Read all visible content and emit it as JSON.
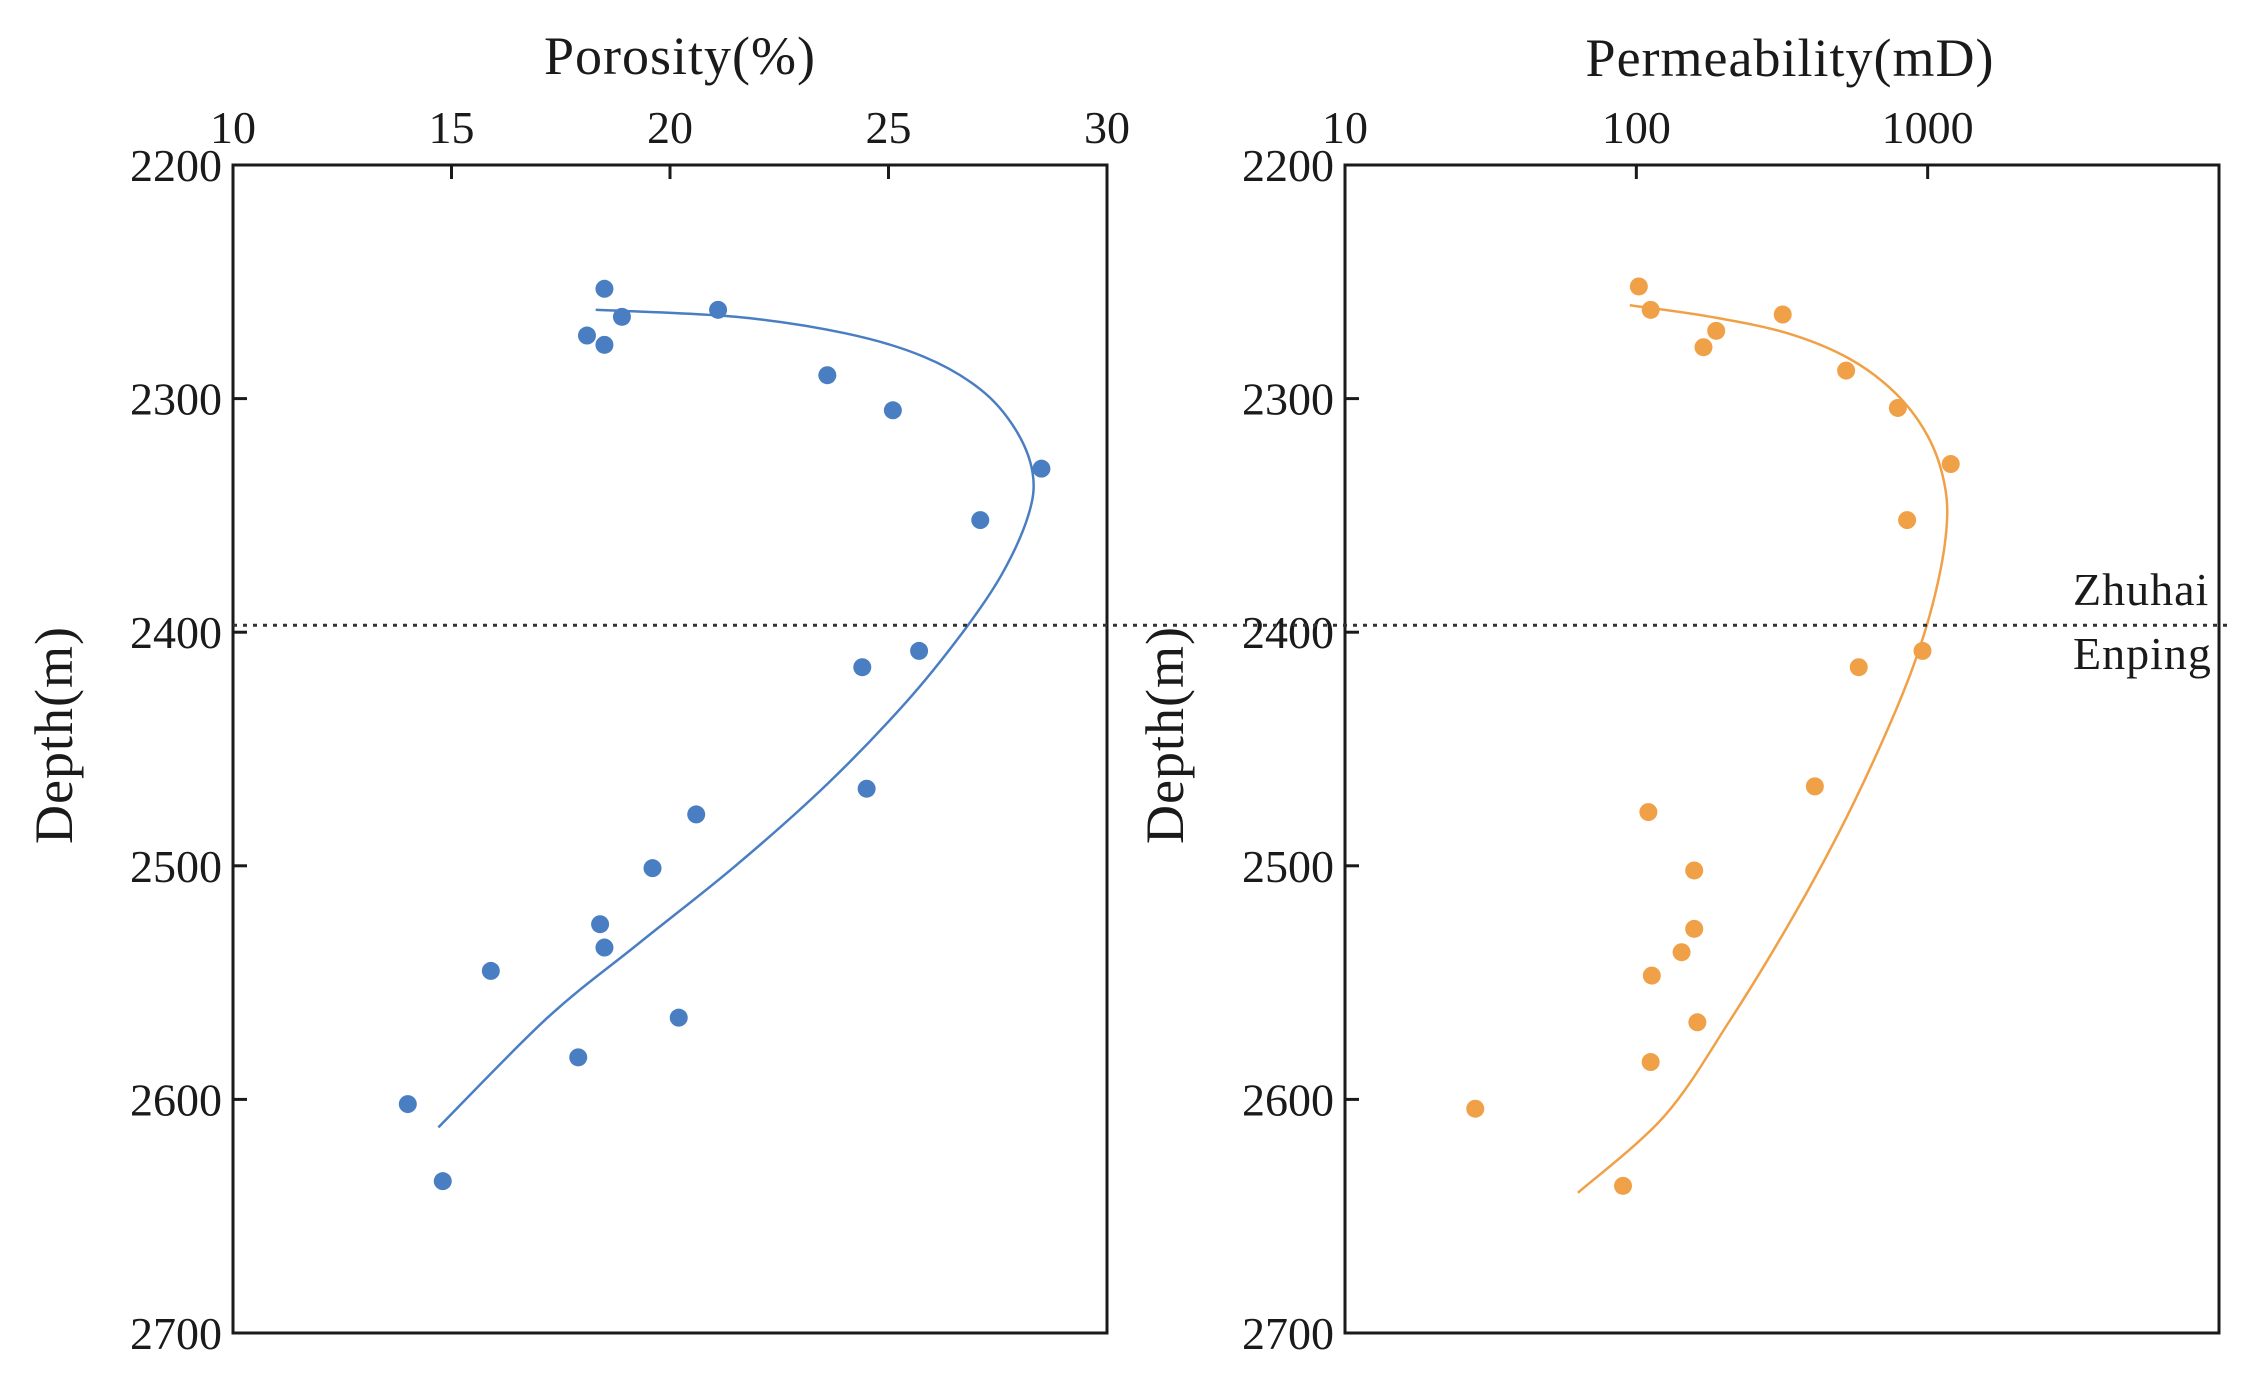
{
  "chart_data": [
    {
      "type": "scatter",
      "id": "porosity",
      "title": "",
      "xlabel": "Porosity(%)",
      "ylabel": "Depth(m)",
      "x_axis_position": "top",
      "xscale": "linear",
      "xlim": [
        10,
        30
      ],
      "ylim": [
        2200,
        2700
      ],
      "y_inverted": true,
      "xticks": [
        10,
        15,
        20,
        25,
        30
      ],
      "xtick_labels": [
        "10",
        "15",
        "20",
        "25",
        "30"
      ],
      "yticks": [
        2200,
        2300,
        2400,
        2500,
        2600,
        2700
      ],
      "ytick_labels": [
        "2200",
        "2300",
        "2400",
        "2500",
        "2600",
        "2700"
      ],
      "color": "#4a7ec2",
      "points": [
        {
          "x": 18.5,
          "y": 2253
        },
        {
          "x": 21.1,
          "y": 2262
        },
        {
          "x": 18.9,
          "y": 2265
        },
        {
          "x": 18.1,
          "y": 2273
        },
        {
          "x": 18.5,
          "y": 2277
        },
        {
          "x": 23.6,
          "y": 2290
        },
        {
          "x": 25.1,
          "y": 2305
        },
        {
          "x": 28.5,
          "y": 2330
        },
        {
          "x": 27.1,
          "y": 2352
        },
        {
          "x": 25.7,
          "y": 2408
        },
        {
          "x": 24.4,
          "y": 2415
        },
        {
          "x": 24.5,
          "y": 2467
        },
        {
          "x": 20.6,
          "y": 2478
        },
        {
          "x": 19.6,
          "y": 2501
        },
        {
          "x": 18.4,
          "y": 2525
        },
        {
          "x": 18.5,
          "y": 2535
        },
        {
          "x": 15.9,
          "y": 2545
        },
        {
          "x": 20.2,
          "y": 2565
        },
        {
          "x": 17.9,
          "y": 2582
        },
        {
          "x": 14.0,
          "y": 2602
        },
        {
          "x": 14.8,
          "y": 2635
        }
      ],
      "fit_curve": [
        {
          "x": 18.3,
          "y": 2262
        },
        {
          "x": 21.5,
          "y": 2265
        },
        {
          "x": 24.0,
          "y": 2272
        },
        {
          "x": 25.8,
          "y": 2282
        },
        {
          "x": 27.1,
          "y": 2296
        },
        {
          "x": 27.9,
          "y": 2313
        },
        {
          "x": 28.3,
          "y": 2332
        },
        {
          "x": 28.2,
          "y": 2350
        },
        {
          "x": 27.6,
          "y": 2375
        },
        {
          "x": 26.7,
          "y": 2400
        },
        {
          "x": 25.4,
          "y": 2430
        },
        {
          "x": 23.6,
          "y": 2465
        },
        {
          "x": 21.5,
          "y": 2500
        },
        {
          "x": 19.3,
          "y": 2533
        },
        {
          "x": 17.2,
          "y": 2565
        },
        {
          "x": 14.7,
          "y": 2612
        }
      ]
    },
    {
      "type": "scatter",
      "id": "permeability",
      "title": "",
      "xlabel": "Permeability(mD)",
      "ylabel": "Depth(m)",
      "x_axis_position": "top",
      "xscale": "log",
      "xlim": [
        10,
        10000
      ],
      "ylim": [
        2200,
        2700
      ],
      "y_inverted": true,
      "xticks": [
        10,
        100,
        1000
      ],
      "xtick_labels": [
        "10",
        "100",
        "1000"
      ],
      "yticks": [
        2200,
        2300,
        2400,
        2500,
        2600,
        2700
      ],
      "ytick_labels": [
        "2200",
        "2300",
        "2400",
        "2500",
        "2600",
        "2700"
      ],
      "color": "#f0a046",
      "points": [
        {
          "x": 102,
          "y": 2252
        },
        {
          "x": 112,
          "y": 2262
        },
        {
          "x": 318,
          "y": 2264
        },
        {
          "x": 188,
          "y": 2271
        },
        {
          "x": 170,
          "y": 2278
        },
        {
          "x": 525,
          "y": 2288
        },
        {
          "x": 790,
          "y": 2304
        },
        {
          "x": 1200,
          "y": 2328
        },
        {
          "x": 850,
          "y": 2352
        },
        {
          "x": 960,
          "y": 2408
        },
        {
          "x": 580,
          "y": 2415
        },
        {
          "x": 410,
          "y": 2466
        },
        {
          "x": 110,
          "y": 2477
        },
        {
          "x": 158,
          "y": 2502
        },
        {
          "x": 158,
          "y": 2527
        },
        {
          "x": 143,
          "y": 2537
        },
        {
          "x": 113,
          "y": 2547
        },
        {
          "x": 162,
          "y": 2567
        },
        {
          "x": 112,
          "y": 2584
        },
        {
          "x": 28,
          "y": 2604
        },
        {
          "x": 90,
          "y": 2637
        }
      ],
      "fit_curve": [
        {
          "x": 95,
          "y": 2260
        },
        {
          "x": 180,
          "y": 2265
        },
        {
          "x": 330,
          "y": 2272
        },
        {
          "x": 540,
          "y": 2283
        },
        {
          "x": 780,
          "y": 2298
        },
        {
          "x": 1000,
          "y": 2316
        },
        {
          "x": 1140,
          "y": 2336
        },
        {
          "x": 1160,
          "y": 2356
        },
        {
          "x": 1060,
          "y": 2384
        },
        {
          "x": 890,
          "y": 2415
        },
        {
          "x": 680,
          "y": 2450
        },
        {
          "x": 490,
          "y": 2487
        },
        {
          "x": 330,
          "y": 2526
        },
        {
          "x": 210,
          "y": 2566
        },
        {
          "x": 125,
          "y": 2607
        },
        {
          "x": 63,
          "y": 2640
        }
      ]
    }
  ],
  "boundary": {
    "depth": 2397,
    "upper_label": "Zhuhai",
    "lower_label": "Enping"
  }
}
